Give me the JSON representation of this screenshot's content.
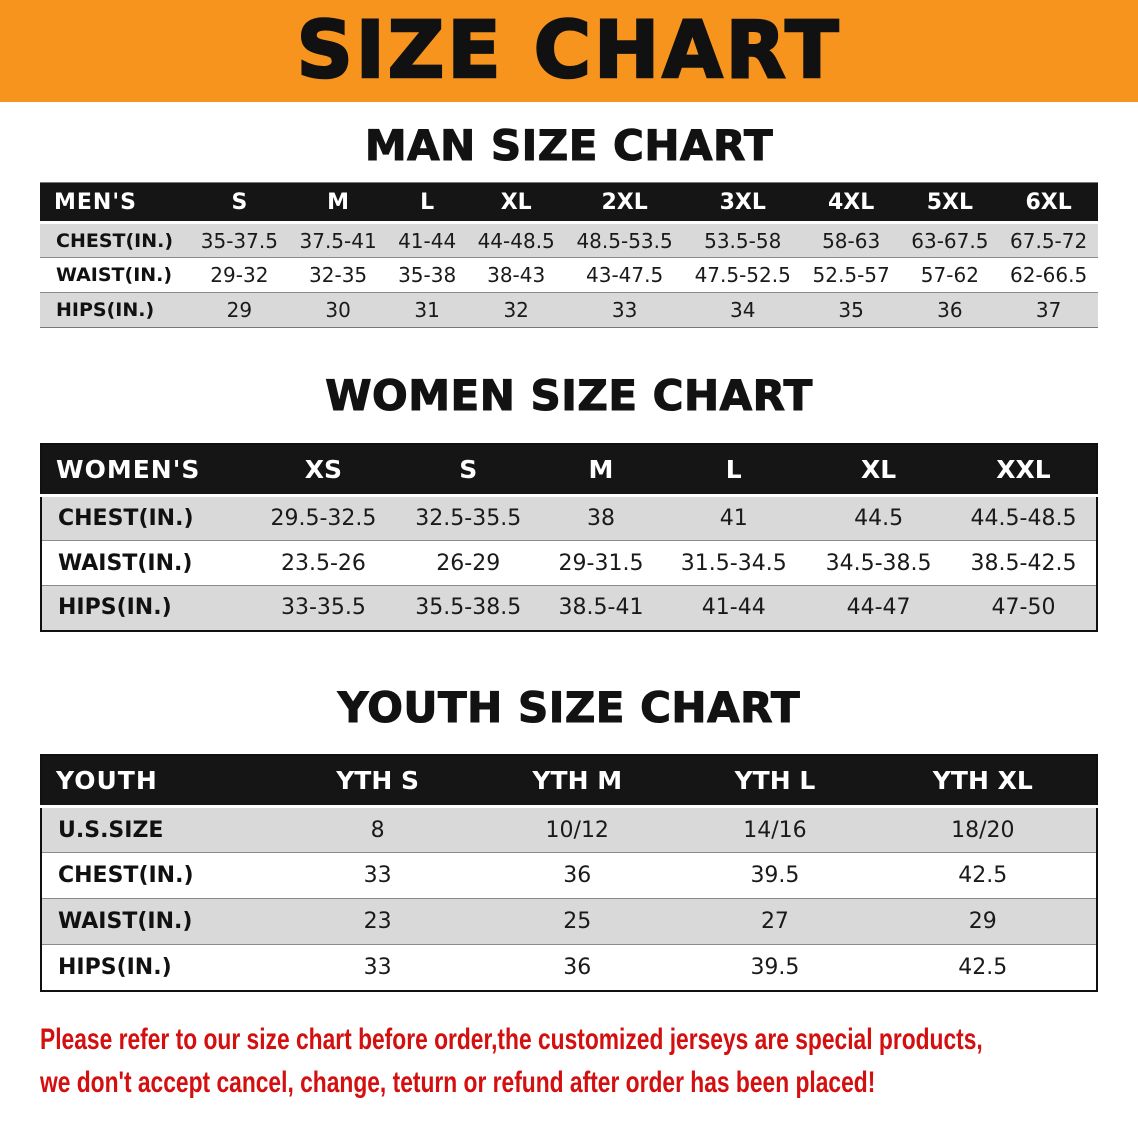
{
  "banner": {
    "title": "SIZE CHART",
    "bg_color": "#F7941D"
  },
  "sections": [
    {
      "heading": "MAN SIZE CHART",
      "table": {
        "corner_label": "MEN'S",
        "columns": [
          "S",
          "M",
          "L",
          "XL",
          "2XL",
          "3XL",
          "4XL",
          "5XL",
          "6XL"
        ],
        "rows": [
          {
            "label": "CHEST(IN.)",
            "values": [
              "35-37.5",
              "37.5-41",
              "41-44",
              "44-48.5",
              "48.5-53.5",
              "53.5-58",
              "58-63",
              "63-67.5",
              "67.5-72"
            ]
          },
          {
            "label": "WAIST(IN.)",
            "values": [
              "29-32",
              "32-35",
              "35-38",
              "38-43",
              "43-47.5",
              "47.5-52.5",
              "52.5-57",
              "57-62",
              "62-66.5"
            ]
          },
          {
            "label": "HIPS(IN.)",
            "values": [
              "29",
              "30",
              "31",
              "32",
              "33",
              "34",
              "35",
              "36",
              "37"
            ]
          }
        ]
      }
    },
    {
      "heading": "WOMEN SIZE CHART",
      "table": {
        "corner_label": "WOMEN'S",
        "columns": [
          "XS",
          "S",
          "M",
          "L",
          "XL",
          "XXL"
        ],
        "rows": [
          {
            "label": "CHEST(IN.)",
            "values": [
              "29.5-32.5",
              "32.5-35.5",
              "38",
              "41",
              "44.5",
              "44.5-48.5"
            ]
          },
          {
            "label": "WAIST(IN.)",
            "values": [
              "23.5-26",
              "26-29",
              "29-31.5",
              "31.5-34.5",
              "34.5-38.5",
              "38.5-42.5"
            ]
          },
          {
            "label": "HIPS(IN.)",
            "values": [
              "33-35.5",
              "35.5-38.5",
              "38.5-41",
              "41-44",
              "44-47",
              "47-50"
            ]
          }
        ]
      }
    },
    {
      "heading": "YOUTH SIZE CHART",
      "table": {
        "corner_label": "YOUTH",
        "columns": [
          "YTH S",
          "YTH M",
          "YTH L",
          "YTH XL"
        ],
        "rows": [
          {
            "label": "U.S.SIZE",
            "values": [
              "8",
              "10/12",
              "14/16",
              "18/20"
            ]
          },
          {
            "label": "CHEST(IN.)",
            "values": [
              "33",
              "36",
              "39.5",
              "42.5"
            ]
          },
          {
            "label": "WAIST(IN.)",
            "values": [
              "23",
              "25",
              "27",
              "29"
            ]
          },
          {
            "label": "HIPS(IN.)",
            "values": [
              "33",
              "36",
              "39.5",
              "42.5"
            ]
          }
        ]
      }
    }
  ],
  "notice": {
    "color": "#d40f0f",
    "lines": [
      "Please refer to our size chart before order,the customized jerseys are special products,",
      "we don't accept cancel, change, teturn or refund after order has been placed!"
    ]
  }
}
